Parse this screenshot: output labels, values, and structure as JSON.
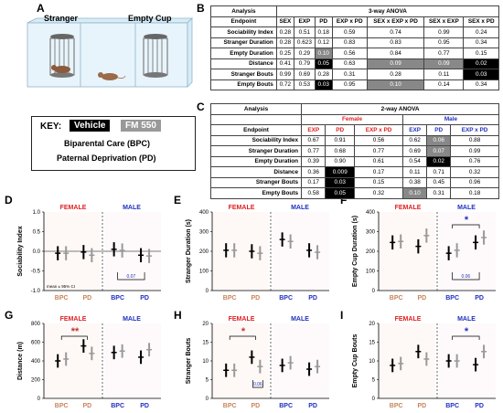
{
  "panel_letters": [
    "A",
    "B",
    "C",
    "D",
    "E",
    "F",
    "G",
    "H",
    "I"
  ],
  "panel_a": {
    "stranger_label": "Stranger",
    "empty_cup_label": "Empty Cup"
  },
  "key": {
    "title": "KEY:",
    "vehicle": "Vehicle",
    "fm550": "FM 550",
    "line1": "Biparental Care (BPC)",
    "line2": "Paternal Deprivation (PD)"
  },
  "colors": {
    "female": "#e02020",
    "male": "#2030c0",
    "vehicle": "#000000",
    "fm550": "#999999",
    "bpc_label": "#c8845c"
  },
  "table_b": {
    "analysis_label": "Analysis",
    "title": "3-way ANOVA",
    "endpoint_label": "Endpoint",
    "headers": [
      "SEX",
      "EXP",
      "PD",
      "EXP x PD",
      "SEX x EXP x PD",
      "SEX x EXP",
      "SEX x PD"
    ],
    "rows": [
      {
        "name": "Sociability Index",
        "values": [
          "0.28",
          "0.51",
          "0.18",
          "0.59",
          "0.74",
          "0.99",
          "0.24"
        ],
        "shade": [
          "",
          "",
          "",
          "",
          "",
          "",
          ""
        ]
      },
      {
        "name": "Stranger Duration",
        "values": [
          "0.28",
          "0.623",
          "0.12",
          "0.83",
          "0.83",
          "0.95",
          "0.34"
        ],
        "shade": [
          "",
          "",
          "",
          "",
          "",
          "",
          ""
        ]
      },
      {
        "name": "Empty Duration",
        "values": [
          "0.25",
          "0.29",
          "0.10",
          "0.56",
          "0.84",
          "0.77",
          "0.15"
        ],
        "shade": [
          "",
          "",
          "g",
          "",
          "",
          "",
          ""
        ]
      },
      {
        "name": "Distance",
        "values": [
          "0.41",
          "0.79",
          "0.05",
          "0.63",
          "0.09",
          "0.09",
          "0.02"
        ],
        "shade": [
          "",
          "",
          "b",
          "",
          "g",
          "g",
          "b"
        ]
      },
      {
        "name": "Stranger Bouts",
        "values": [
          "0.99",
          "0.69",
          "0.28",
          "0.31",
          "0.28",
          "0.11",
          "0.03"
        ],
        "shade": [
          "",
          "",
          "",
          "",
          "",
          "",
          "b"
        ]
      },
      {
        "name": "Empty Bouts",
        "values": [
          "0.72",
          "0.53",
          "0.03",
          "0.95",
          "0.10",
          "0.14",
          "0.34"
        ],
        "shade": [
          "",
          "",
          "b",
          "",
          "g",
          "",
          ""
        ]
      }
    ]
  },
  "table_c": {
    "analysis_label": "Analysis",
    "title": "2-way ANOVA",
    "endpoint_label": "Endpoint",
    "female_label": "Female",
    "male_label": "Male",
    "headers": [
      "EXP",
      "PD",
      "EXP x PD",
      "EXP",
      "PD",
      "EXP x PD"
    ],
    "rows": [
      {
        "name": "Sociability Index",
        "values": [
          "0.67",
          "0.91",
          "0.56",
          "0.62",
          "0.06",
          "0.88"
        ],
        "shade": [
          "",
          "",
          "",
          "",
          "g",
          ""
        ]
      },
      {
        "name": "Stranger Duration",
        "values": [
          "0.77",
          "0.68",
          "0.77",
          "0.69",
          "0.07",
          "0.99"
        ],
        "shade": [
          "",
          "",
          "",
          "",
          "g",
          ""
        ]
      },
      {
        "name": "Empty Duration",
        "values": [
          "0.39",
          "0.90",
          "0.61",
          "0.54",
          "0.02",
          "0.76"
        ],
        "shade": [
          "",
          "",
          "",
          "",
          "b",
          ""
        ]
      },
      {
        "name": "Distance",
        "values": [
          "0.36",
          "0.009",
          "0.17",
          "0.11",
          "0.71",
          "0.32"
        ],
        "shade": [
          "",
          "b",
          "",
          "",
          "",
          ""
        ]
      },
      {
        "name": "Stranger Bouts",
        "values": [
          "0.17",
          "0.03",
          "0.15",
          "0.38",
          "0.45",
          "0.96"
        ],
        "shade": [
          "",
          "b",
          "",
          "",
          "",
          ""
        ]
      },
      {
        "name": "Empty Bouts",
        "values": [
          "0.58",
          "0.05",
          "0.32",
          "0.10",
          "0.31",
          "0.18"
        ],
        "shade": [
          "",
          "b",
          "",
          "g",
          "",
          ""
        ]
      }
    ]
  },
  "chart_data": [
    {
      "panel": "D",
      "type": "scatter",
      "ylabel": "Sociability Index",
      "ylim": [
        -1.0,
        1.0
      ],
      "yticks": [
        "-1.0",
        "-0.5",
        "0.0",
        "0.5",
        "1.0"
      ],
      "groups": [
        "BPC",
        "PD",
        "BPC",
        "PD"
      ],
      "sex_labels": [
        "FEMALE",
        "MALE"
      ],
      "note": "mean ± 95% CI",
      "annotation": "0.07",
      "means": {
        "vehicle": [
          -0.05,
          -0.02,
          0.05,
          -0.1
        ],
        "fm550": [
          -0.05,
          -0.1,
          0.02,
          -0.12
        ]
      }
    },
    {
      "panel": "E",
      "type": "scatter",
      "ylabel": "Stranger Duration (s)",
      "ylim": [
        0,
        400
      ],
      "yticks": [
        "0",
        "100",
        "200",
        "300",
        "400"
      ],
      "groups": [
        "BPC",
        "PD",
        "BPC",
        "PD"
      ],
      "sex_labels": [
        "FEMALE",
        "MALE"
      ],
      "means": {
        "vehicle": [
          205,
          200,
          260,
          205
        ],
        "fm550": [
          205,
          190,
          250,
          195
        ]
      }
    },
    {
      "panel": "F",
      "type": "scatter",
      "ylabel": "Empty Cup Duration (s)",
      "ylim": [
        0,
        400
      ],
      "yticks": [
        "0",
        "100",
        "200",
        "300",
        "400"
      ],
      "groups": [
        "BPC",
        "PD",
        "BPC",
        "PD"
      ],
      "sex_labels": [
        "FEMALE",
        "MALE"
      ],
      "annotation": "0.06",
      "star": "*",
      "means": {
        "vehicle": [
          245,
          225,
          190,
          245
        ],
        "fm550": [
          250,
          280,
          205,
          270
        ]
      }
    },
    {
      "panel": "G",
      "type": "scatter",
      "ylabel": "Distance (m)",
      "ylim": [
        0,
        800
      ],
      "yticks": [
        "0",
        "200",
        "400",
        "600",
        "800"
      ],
      "groups": [
        "BPC",
        "PD",
        "BPC",
        "PD"
      ],
      "sex_labels": [
        "FEMALE",
        "MALE"
      ],
      "star": "**",
      "means": {
        "vehicle": [
          400,
          560,
          490,
          440
        ],
        "fm550": [
          420,
          480,
          505,
          520
        ]
      }
    },
    {
      "panel": "H",
      "type": "scatter",
      "ylabel": "Stranger Bouts",
      "ylim": [
        0,
        20
      ],
      "yticks": [
        "0",
        "5",
        "10",
        "15",
        "20"
      ],
      "groups": [
        "BPC",
        "PD",
        "BPC",
        "PD"
      ],
      "sex_labels": [
        "FEMALE",
        "MALE"
      ],
      "star": "*",
      "annotation": "0.06",
      "means": {
        "vehicle": [
          7.5,
          11,
          8.8,
          7.8
        ],
        "fm550": [
          7.5,
          8.5,
          9.5,
          8.5
        ]
      }
    },
    {
      "panel": "I",
      "type": "scatter",
      "ylabel": "Empty Cup Bouts",
      "ylim": [
        0,
        20
      ],
      "yticks": [
        "0",
        "5",
        "10",
        "15",
        "20"
      ],
      "groups": [
        "BPC",
        "PD",
        "BPC",
        "PD"
      ],
      "sex_labels": [
        "FEMALE",
        "MALE"
      ],
      "star": "*",
      "means": {
        "vehicle": [
          8.8,
          12.5,
          10.0,
          9.0
        ],
        "fm550": [
          9.3,
          10.5,
          10.0,
          12.5
        ]
      }
    }
  ]
}
